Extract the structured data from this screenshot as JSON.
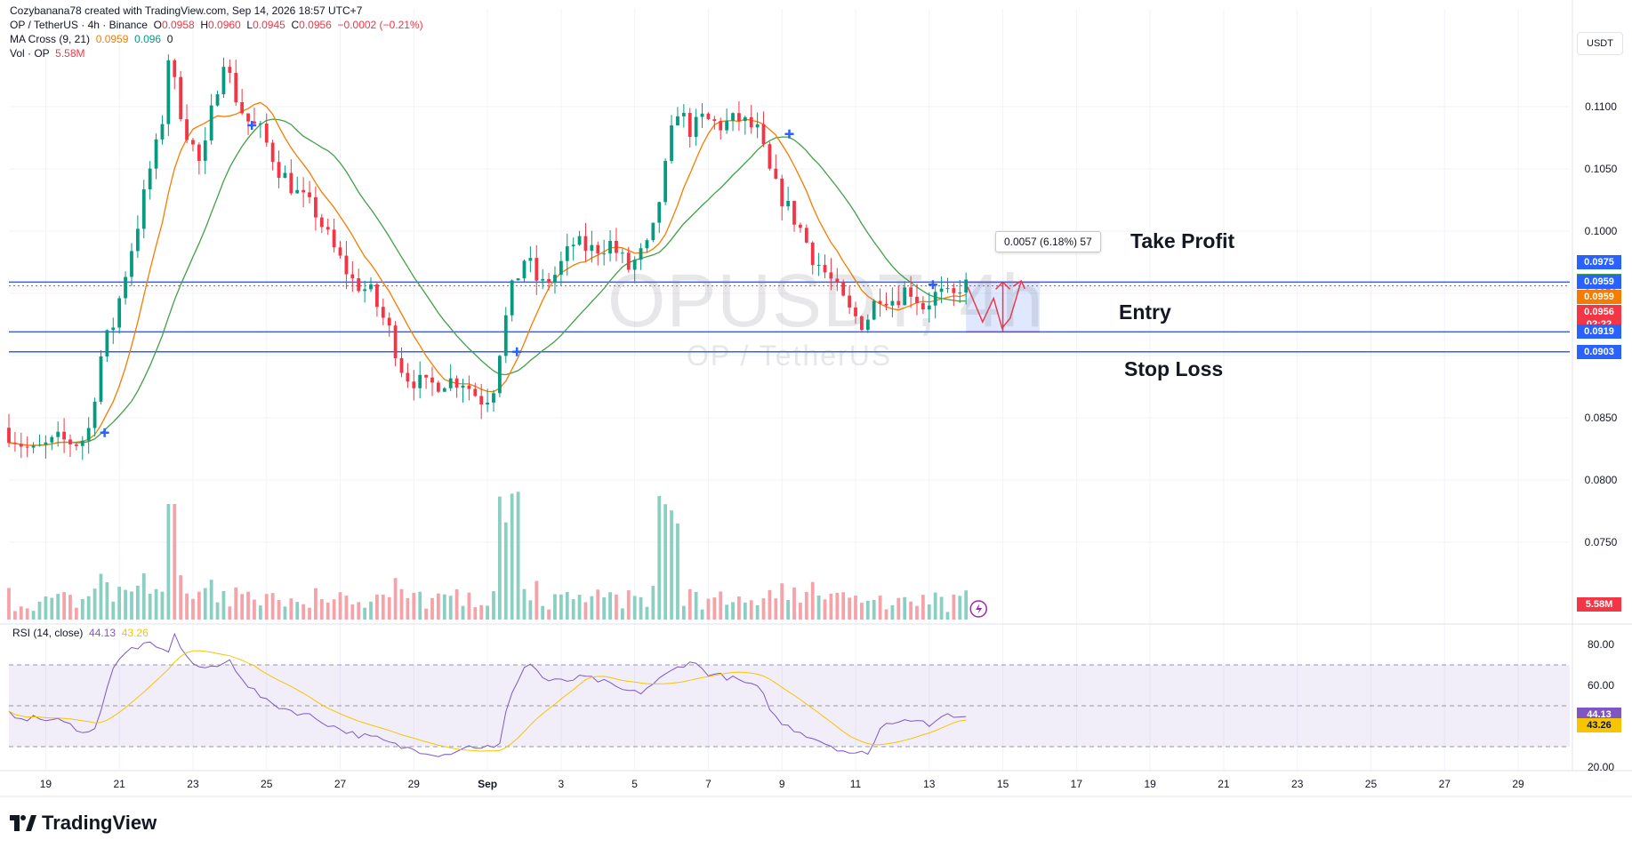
{
  "header": {
    "creator": "Cozybanana78 created with TradingView.com, Sep 14, 2026 18:57 UTC+7",
    "symbol_line": "OP / TetherUS · 4h · Binance",
    "o_label": "O",
    "o_val": "0.0958",
    "h_label": "H",
    "h_val": "0.0960",
    "l_label": "L",
    "l_val": "0.0945",
    "c_label": "C",
    "c_val": "0.0956",
    "change": "−0.0002 (−0.21%)",
    "ma_label": "MA Cross (9, 21)",
    "ma_fast": "0.0959",
    "ma_slow": "0.096",
    "ma_flag": "0",
    "vol_label": "Vol · OP",
    "vol_val": "5.58M"
  },
  "watermark": {
    "main": "OPUSDT, 4h",
    "sub": "OP / TetherUS"
  },
  "currency": "USDT",
  "brand": "TradingView",
  "annotations": {
    "take_profit": "Take Profit",
    "entry": "Entry",
    "stop_loss": "Stop Loss",
    "measure": "0.0057 (6.18%) 57"
  },
  "price_tags": [
    {
      "label": "0.0975",
      "color": "#2962ff",
      "price": 0.0975
    },
    {
      "label": "0.0960",
      "color": "#43a047",
      "price": 0.096
    },
    {
      "label": "0.0959",
      "color": "#2962ff",
      "price": 0.0959
    },
    {
      "label": "0.0959",
      "color": "#f57c00",
      "price": 0.0947
    },
    {
      "label": "0.0956",
      "color": "#f23645",
      "price": 0.0935
    },
    {
      "label": "02:22",
      "color": "#f23645",
      "price": 0.0925
    },
    {
      "label": "0.0919",
      "color": "#2962ff",
      "price": 0.0919
    },
    {
      "label": "0.0903",
      "color": "#2962ff",
      "price": 0.0903
    }
  ],
  "vol_tag": {
    "label": "5.58M",
    "color": "#f23645"
  },
  "rsi_tags": [
    {
      "label": "44.13",
      "color": "#7e57c2",
      "value": 44.13
    },
    {
      "label": "43.26",
      "color": "#f7c400",
      "value": 43.26
    }
  ],
  "rsi_header": {
    "label": "RSI (14, close)",
    "rsi": "44.13",
    "ma": "43.26"
  },
  "colors": {
    "up": "#089981",
    "down": "#f23645",
    "ma_fast": "#f57c00",
    "ma_slow": "#43a047",
    "level": "#2962ff",
    "rsi": "#7e57c2",
    "rsi_ma": "#f7c400",
    "up_vol": "#8bcfc3",
    "down_vol": "#f5a3a9"
  },
  "chart_data": {
    "type": "candlestick",
    "symbol": "OPUSDT",
    "interval": "4h",
    "price_axis_ticks": [
      0.11,
      0.105,
      0.1,
      0.095,
      0.09,
      0.085,
      0.08,
      0.075
    ],
    "price_axis_labels": [
      "0.1100",
      "0.1050",
      "0.1000",
      "0.0950",
      "0.0900",
      "0.0850",
      "0.0800",
      "0.0750"
    ],
    "price_range": [
      0.0718,
      0.1172
    ],
    "rsi_axis_ticks": [
      80,
      60,
      40,
      20
    ],
    "rsi_axis_labels": [
      "80.00",
      "60.00",
      "40.00",
      "20.00"
    ],
    "rsi_levels": [
      70,
      50,
      30
    ],
    "x_labels": [
      "19",
      "21",
      "23",
      "25",
      "27",
      "29",
      "Sep",
      "3",
      "5",
      "7",
      "9",
      "11",
      "13",
      "15",
      "17",
      "19",
      "21",
      "23",
      "25",
      "27",
      "29"
    ],
    "x_days": [
      19,
      21,
      23,
      25,
      27,
      29,
      31,
      33,
      35,
      37,
      39,
      41,
      43,
      45,
      47,
      49,
      51,
      53,
      55,
      57,
      59
    ],
    "levels": {
      "take_profit": 0.0959,
      "entry": 0.0919,
      "stop_loss": 0.0903
    },
    "keypoints": [
      [
        18.0,
        0.0842
      ],
      [
        18.8,
        0.0822
      ],
      [
        19.5,
        0.0832
      ],
      [
        20.0,
        0.083
      ],
      [
        20.3,
        0.0835
      ],
      [
        20.7,
        0.0905
      ],
      [
        21.0,
        0.0925
      ],
      [
        21.4,
        0.0975
      ],
      [
        21.7,
        0.101
      ],
      [
        22.0,
        0.105
      ],
      [
        22.3,
        0.108
      ],
      [
        22.5,
        0.114
      ],
      [
        22.8,
        0.11
      ],
      [
        23.0,
        0.108
      ],
      [
        23.4,
        0.105
      ],
      [
        23.7,
        0.11
      ],
      [
        24.0,
        0.114
      ],
      [
        24.3,
        0.111
      ],
      [
        24.6,
        0.109
      ],
      [
        25.0,
        0.108
      ],
      [
        25.5,
        0.105
      ],
      [
        26.0,
        0.103
      ],
      [
        26.5,
        0.1015
      ],
      [
        27.0,
        0.0985
      ],
      [
        27.5,
        0.096
      ],
      [
        28.0,
        0.095
      ],
      [
        28.5,
        0.092
      ],
      [
        28.9,
        0.0885
      ],
      [
        29.5,
        0.0875
      ],
      [
        30.0,
        0.088
      ],
      [
        30.5,
        0.088
      ],
      [
        30.8,
        0.087
      ],
      [
        31.0,
        0.0865
      ],
      [
        31.3,
        0.087
      ],
      [
        31.5,
        0.0905
      ],
      [
        31.8,
        0.095
      ],
      [
        32.2,
        0.098
      ],
      [
        32.6,
        0.0955
      ],
      [
        33.0,
        0.0965
      ],
      [
        33.5,
        0.099
      ],
      [
        34.0,
        0.0985
      ],
      [
        34.5,
        0.099
      ],
      [
        35.0,
        0.097
      ],
      [
        35.3,
        0.098
      ],
      [
        35.6,
        0.099
      ],
      [
        36.0,
        0.105
      ],
      [
        36.3,
        0.11
      ],
      [
        36.7,
        0.108
      ],
      [
        37.0,
        0.109
      ],
      [
        37.5,
        0.1085
      ],
      [
        38.0,
        0.109
      ],
      [
        38.5,
        0.108
      ],
      [
        38.9,
        0.104
      ],
      [
        39.3,
        0.102
      ],
      [
        39.7,
        0.1
      ],
      [
        40.0,
        0.098
      ],
      [
        40.5,
        0.096
      ],
      [
        41.0,
        0.0935
      ],
      [
        41.4,
        0.0925
      ],
      [
        41.8,
        0.095
      ],
      [
        42.2,
        0.0945
      ],
      [
        42.6,
        0.0955
      ],
      [
        43.0,
        0.094
      ],
      [
        43.4,
        0.095
      ],
      [
        43.8,
        0.0945
      ],
      [
        44.0,
        0.0956
      ]
    ],
    "rsi_keypoints": [
      [
        18.0,
        46
      ],
      [
        18.5,
        44
      ],
      [
        19.3,
        43
      ],
      [
        20.0,
        38
      ],
      [
        20.3,
        36
      ],
      [
        20.8,
        68
      ],
      [
        21.3,
        78
      ],
      [
        21.8,
        80
      ],
      [
        22.3,
        76
      ],
      [
        22.5,
        84
      ],
      [
        23.0,
        70
      ],
      [
        23.5,
        68
      ],
      [
        24.0,
        72
      ],
      [
        24.5,
        60
      ],
      [
        25.0,
        52
      ],
      [
        25.6,
        48
      ],
      [
        26.2,
        45
      ],
      [
        26.8,
        40
      ],
      [
        27.4,
        36
      ],
      [
        28.0,
        34
      ],
      [
        28.6,
        30
      ],
      [
        29.2,
        28
      ],
      [
        29.8,
        26
      ],
      [
        30.4,
        30
      ],
      [
        31.0,
        30
      ],
      [
        31.3,
        28
      ],
      [
        31.6,
        55
      ],
      [
        32.1,
        72
      ],
      [
        32.6,
        62
      ],
      [
        33.1,
        62
      ],
      [
        33.6,
        64
      ],
      [
        34.1,
        62
      ],
      [
        34.6,
        58
      ],
      [
        35.1,
        56
      ],
      [
        35.6,
        62
      ],
      [
        36.1,
        68
      ],
      [
        36.5,
        72
      ],
      [
        37.0,
        66
      ],
      [
        37.5,
        64
      ],
      [
        37.9,
        62
      ],
      [
        38.4,
        58
      ],
      [
        38.9,
        42
      ],
      [
        39.4,
        38
      ],
      [
        39.9,
        34
      ],
      [
        40.4,
        30
      ],
      [
        41.0,
        26
      ],
      [
        41.4,
        28
      ],
      [
        41.7,
        40
      ],
      [
        42.1,
        43
      ],
      [
        42.6,
        44
      ],
      [
        43.1,
        40
      ],
      [
        43.5,
        46
      ],
      [
        44.0,
        44.13
      ]
    ],
    "projection_path": [
      [
        44.05,
        0.0955
      ],
      [
        44.45,
        0.0927
      ],
      [
        44.75,
        0.0946
      ],
      [
        44.98,
        0.0922
      ],
      [
        45.2,
        0.093
      ],
      [
        45.5,
        0.096
      ]
    ],
    "risk_box": {
      "x_start": 44.0,
      "x_end": 46.0,
      "top": 0.0959,
      "bottom": 0.0919
    }
  }
}
